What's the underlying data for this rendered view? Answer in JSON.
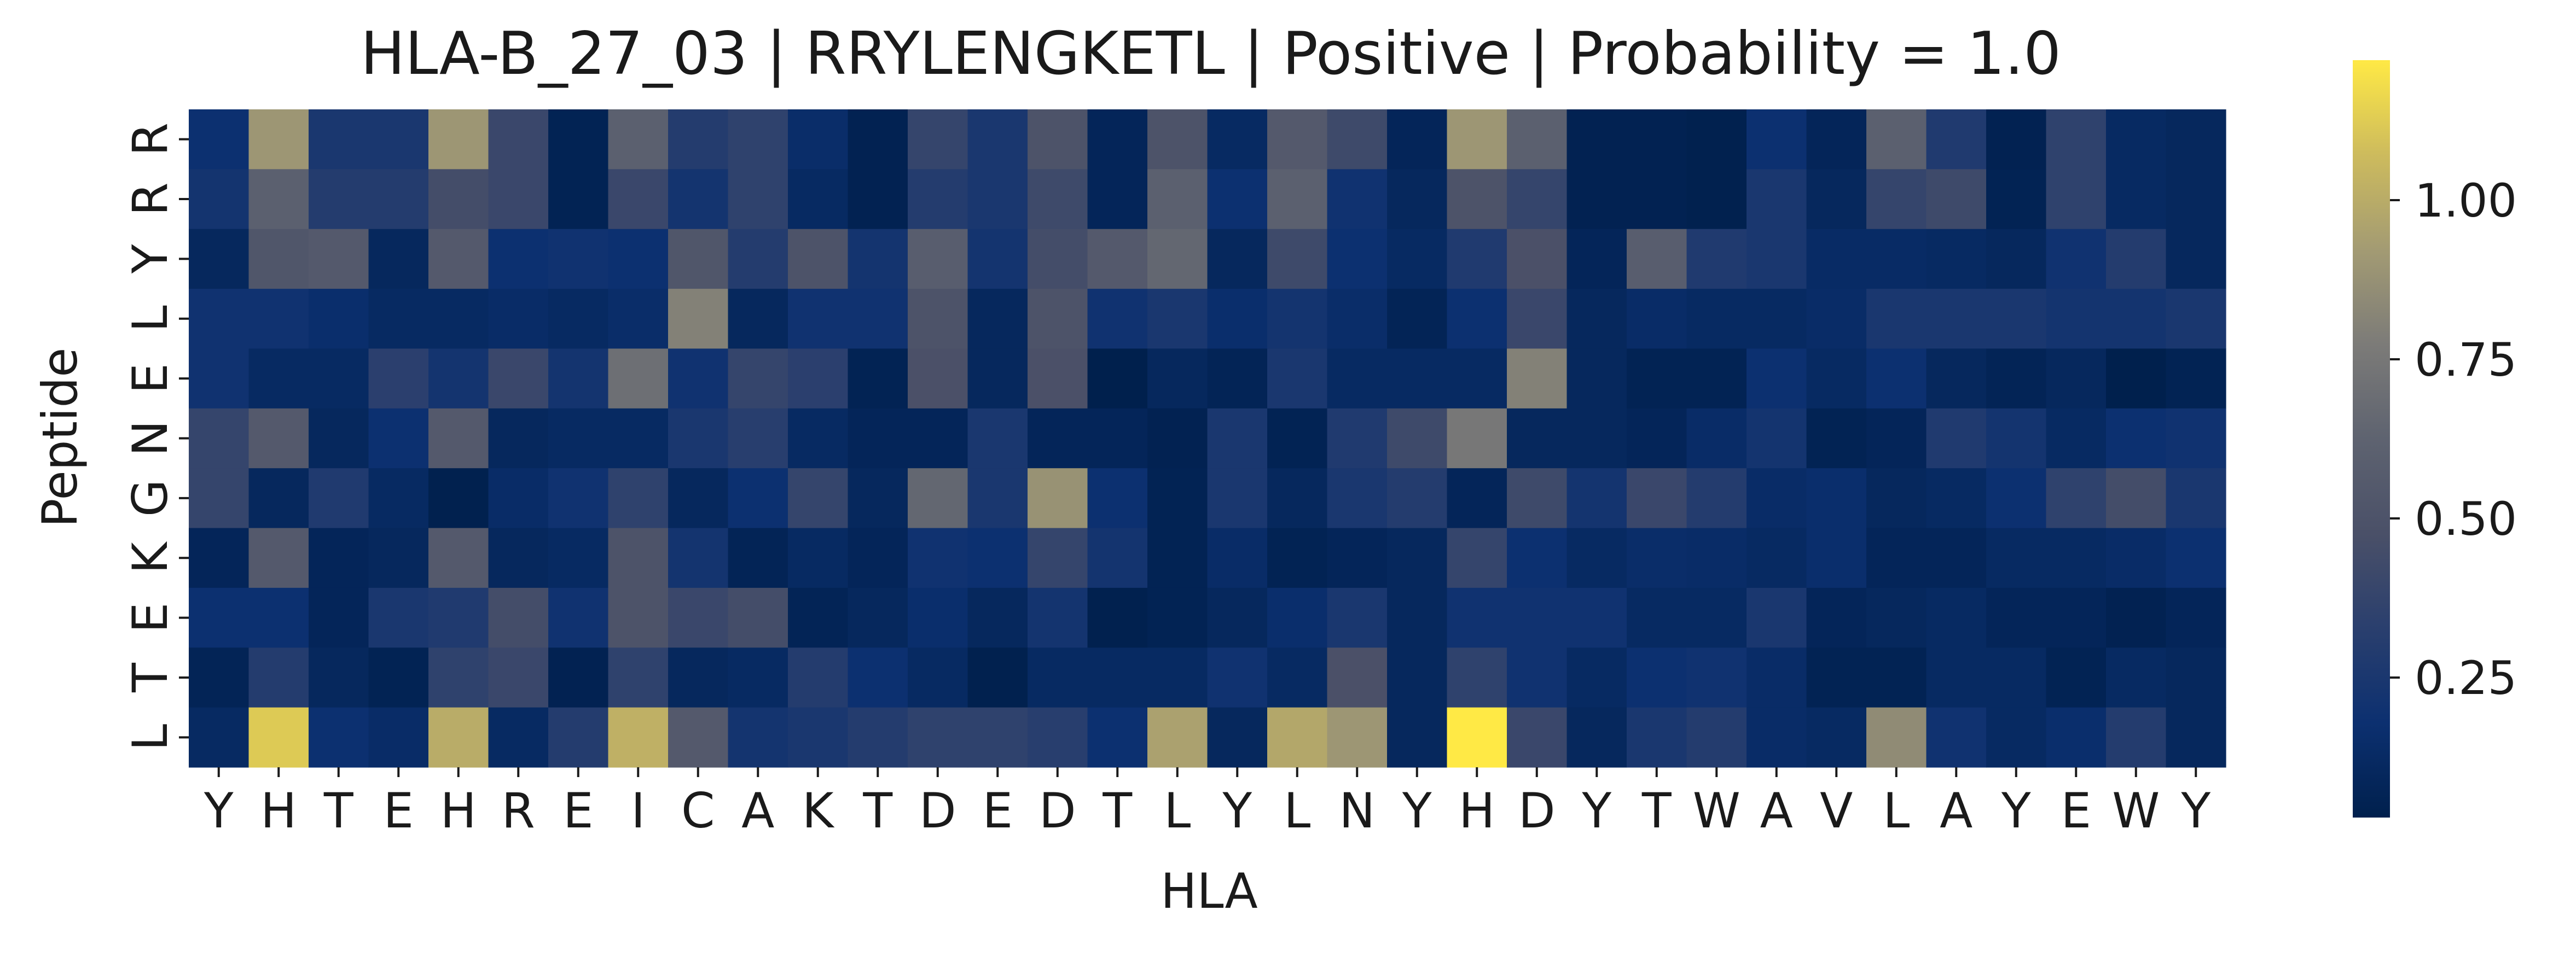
{
  "chart_data": {
    "type": "heatmap",
    "title": "HLA-B_27_03 | RRYLENGKETL | Positive | Probability = 1.0",
    "xlabel": "HLA",
    "ylabel": "Peptide",
    "x_categories": [
      "Y",
      "H",
      "T",
      "E",
      "H",
      "R",
      "E",
      "I",
      "C",
      "A",
      "K",
      "T",
      "D",
      "E",
      "D",
      "T",
      "L",
      "Y",
      "L",
      "N",
      "Y",
      "H",
      "D",
      "Y",
      "T",
      "W",
      "A",
      "V",
      "L",
      "A",
      "Y",
      "E",
      "W",
      "Y"
    ],
    "y_categories": [
      "R",
      "R",
      "Y",
      "L",
      "E",
      "N",
      "G",
      "K",
      "E",
      "T",
      "L"
    ],
    "values": [
      [
        0.18,
        0.9,
        0.25,
        0.25,
        0.9,
        0.4,
        0.06,
        0.6,
        0.3,
        0.35,
        0.15,
        0.05,
        0.38,
        0.25,
        0.5,
        0.08,
        0.5,
        0.12,
        0.55,
        0.42,
        0.08,
        0.9,
        0.6,
        0.05,
        0.05,
        0.04,
        0.18,
        0.08,
        0.6,
        0.28,
        0.05,
        0.35,
        0.12,
        0.1
      ],
      [
        0.22,
        0.6,
        0.3,
        0.3,
        0.45,
        0.4,
        0.06,
        0.4,
        0.22,
        0.35,
        0.12,
        0.05,
        0.3,
        0.25,
        0.42,
        0.08,
        0.6,
        0.18,
        0.6,
        0.2,
        0.1,
        0.5,
        0.38,
        0.05,
        0.05,
        0.04,
        0.25,
        0.1,
        0.38,
        0.42,
        0.06,
        0.35,
        0.12,
        0.1
      ],
      [
        0.1,
        0.52,
        0.55,
        0.1,
        0.55,
        0.18,
        0.2,
        0.18,
        0.52,
        0.3,
        0.5,
        0.22,
        0.58,
        0.22,
        0.45,
        0.55,
        0.65,
        0.1,
        0.42,
        0.18,
        0.12,
        0.28,
        0.48,
        0.08,
        0.58,
        0.28,
        0.25,
        0.13,
        0.13,
        0.12,
        0.1,
        0.2,
        0.3,
        0.1
      ],
      [
        0.2,
        0.2,
        0.16,
        0.12,
        0.12,
        0.14,
        0.12,
        0.15,
        0.8,
        0.1,
        0.2,
        0.2,
        0.5,
        0.1,
        0.5,
        0.2,
        0.25,
        0.16,
        0.22,
        0.15,
        0.07,
        0.18,
        0.4,
        0.1,
        0.14,
        0.12,
        0.12,
        0.14,
        0.25,
        0.25,
        0.25,
        0.22,
        0.22,
        0.25
      ],
      [
        0.2,
        0.12,
        0.12,
        0.33,
        0.22,
        0.4,
        0.22,
        0.7,
        0.2,
        0.38,
        0.33,
        0.06,
        0.48,
        0.1,
        0.48,
        0.03,
        0.1,
        0.07,
        0.25,
        0.12,
        0.12,
        0.12,
        0.8,
        0.1,
        0.06,
        0.06,
        0.18,
        0.12,
        0.18,
        0.1,
        0.07,
        0.1,
        0.03,
        0.06
      ],
      [
        0.38,
        0.55,
        0.1,
        0.18,
        0.55,
        0.1,
        0.12,
        0.12,
        0.25,
        0.32,
        0.12,
        0.08,
        0.08,
        0.25,
        0.08,
        0.08,
        0.05,
        0.25,
        0.06,
        0.28,
        0.42,
        0.75,
        0.1,
        0.1,
        0.08,
        0.14,
        0.22,
        0.06,
        0.08,
        0.28,
        0.22,
        0.12,
        0.18,
        0.2
      ],
      [
        0.38,
        0.1,
        0.28,
        0.12,
        0.04,
        0.14,
        0.2,
        0.35,
        0.1,
        0.18,
        0.38,
        0.1,
        0.65,
        0.25,
        0.88,
        0.18,
        0.06,
        0.25,
        0.1,
        0.25,
        0.3,
        0.08,
        0.42,
        0.22,
        0.4,
        0.3,
        0.14,
        0.16,
        0.1,
        0.12,
        0.18,
        0.35,
        0.45,
        0.25
      ],
      [
        0.08,
        0.55,
        0.08,
        0.1,
        0.55,
        0.1,
        0.12,
        0.5,
        0.22,
        0.07,
        0.12,
        0.08,
        0.2,
        0.18,
        0.38,
        0.22,
        0.06,
        0.14,
        0.06,
        0.08,
        0.1,
        0.38,
        0.18,
        0.12,
        0.15,
        0.14,
        0.12,
        0.16,
        0.08,
        0.08,
        0.12,
        0.12,
        0.14,
        0.18
      ],
      [
        0.18,
        0.18,
        0.08,
        0.25,
        0.28,
        0.45,
        0.2,
        0.5,
        0.4,
        0.45,
        0.07,
        0.1,
        0.16,
        0.1,
        0.22,
        0.04,
        0.06,
        0.1,
        0.16,
        0.25,
        0.1,
        0.2,
        0.2,
        0.2,
        0.12,
        0.12,
        0.25,
        0.08,
        0.1,
        0.12,
        0.08,
        0.08,
        0.05,
        0.08
      ],
      [
        0.07,
        0.3,
        0.1,
        0.06,
        0.35,
        0.4,
        0.05,
        0.35,
        0.1,
        0.12,
        0.3,
        0.18,
        0.12,
        0.04,
        0.12,
        0.12,
        0.12,
        0.2,
        0.12,
        0.48,
        0.1,
        0.35,
        0.2,
        0.12,
        0.18,
        0.2,
        0.14,
        0.06,
        0.06,
        0.12,
        0.12,
        0.06,
        0.12,
        0.1
      ],
      [
        0.12,
        1.12,
        0.18,
        0.14,
        1.0,
        0.12,
        0.3,
        1.02,
        0.55,
        0.22,
        0.25,
        0.3,
        0.35,
        0.35,
        0.32,
        0.18,
        0.95,
        0.1,
        0.98,
        0.9,
        0.1,
        1.22,
        0.4,
        0.1,
        0.25,
        0.3,
        0.14,
        0.12,
        0.85,
        0.2,
        0.12,
        0.16,
        0.3,
        0.1
      ]
    ],
    "colorbar": {
      "colormap": "cividis",
      "vmin": 0.03,
      "vmax": 1.22,
      "ticks": [
        0.25,
        0.5,
        0.75,
        1.0
      ],
      "tick_labels": [
        "0.25",
        "0.50",
        "0.75",
        "1.00"
      ]
    }
  }
}
